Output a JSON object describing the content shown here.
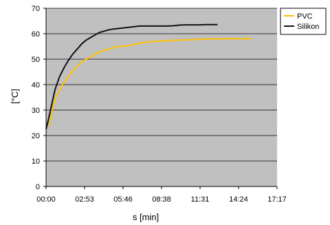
{
  "chart_data": {
    "type": "line",
    "title": "",
    "xlabel": "s [min]",
    "ylabel": "[°C]",
    "xlim_seconds": [
      0,
      1037
    ],
    "ylim": [
      0,
      70
    ],
    "x_tick_labels": [
      "00:00",
      "02:53",
      "05:46",
      "08:38",
      "11:31",
      "14:24",
      "17:17"
    ],
    "y_tick_labels": [
      "0",
      "10",
      "20",
      "30",
      "40",
      "50",
      "60",
      "70"
    ],
    "grid": true,
    "legend_position": "top-right",
    "plot_background": "#c0c0c0",
    "series": [
      {
        "name": "PVC",
        "color": "#ffc000",
        "x": [
          "00:00",
          "00:10",
          "00:20",
          "00:30",
          "00:40",
          "01:00",
          "01:20",
          "01:40",
          "02:00",
          "02:20",
          "02:40",
          "03:00",
          "03:20",
          "03:40",
          "04:00",
          "04:20",
          "04:40",
          "05:00",
          "05:20",
          "05:40",
          "06:00",
          "06:20",
          "06:40",
          "07:00",
          "07:20",
          "07:40",
          "08:00",
          "08:20",
          "08:40",
          "09:00",
          "09:30",
          "10:00",
          "10:30",
          "11:00",
          "11:30",
          "12:00",
          "12:30",
          "13:00",
          "13:30",
          "14:00",
          "14:30",
          "15:00",
          "15:20"
        ],
        "values": [
          22.5,
          24.5,
          27,
          31,
          34.5,
          38,
          41,
          43.5,
          45.5,
          47.5,
          49,
          50,
          51,
          52,
          53,
          53.5,
          54,
          54.5,
          55,
          55,
          55.2,
          55.5,
          56,
          56.2,
          56.5,
          56.8,
          57,
          57,
          57.1,
          57.2,
          57.4,
          57.5,
          57.6,
          57.7,
          57.8,
          57.9,
          58,
          58,
          58,
          58,
          58,
          58,
          58
        ]
      },
      {
        "name": "Silikon",
        "color": "#111111",
        "x": [
          "00:00",
          "00:10",
          "00:20",
          "00:30",
          "00:40",
          "01:00",
          "01:20",
          "01:40",
          "02:00",
          "02:20",
          "02:40",
          "03:00",
          "03:20",
          "03:40",
          "04:00",
          "04:20",
          "04:40",
          "05:00",
          "05:20",
          "05:40",
          "06:00",
          "06:20",
          "06:40",
          "07:00",
          "07:30",
          "08:00",
          "08:30",
          "09:00",
          "09:30",
          "10:00",
          "10:30",
          "11:00",
          "11:30",
          "12:00",
          "12:30",
          "12:50"
        ],
        "values": [
          22.5,
          26,
          30,
          34,
          38,
          43,
          46.5,
          49.5,
          52,
          54,
          56,
          57.5,
          58.5,
          59.5,
          60.5,
          61,
          61.5,
          61.8,
          62,
          62.2,
          62.4,
          62.6,
          62.8,
          63,
          63,
          63,
          63,
          63,
          63.1,
          63.4,
          63.5,
          63.5,
          63.5,
          63.6,
          63.6,
          63.6
        ]
      }
    ]
  }
}
